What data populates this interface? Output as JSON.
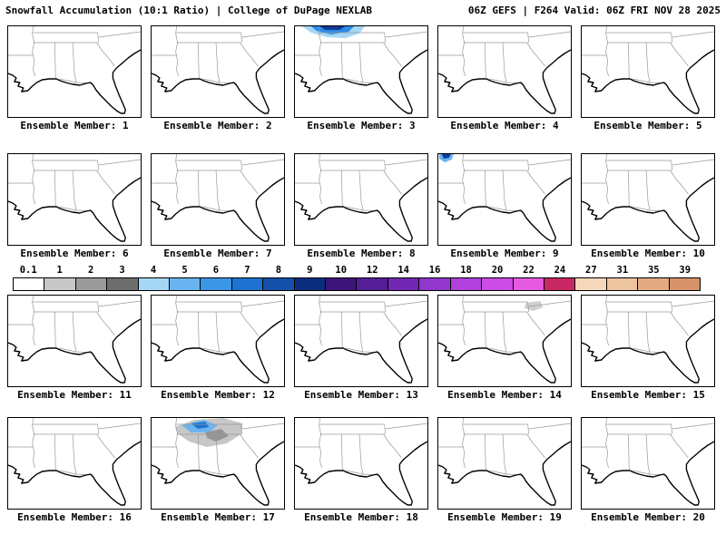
{
  "header": {
    "left": "Snowfall Accumulation (10:1 Ratio) | College of DuPage NEXLAB",
    "right": "06Z GEFS | F264 Valid: 06Z FRI NOV 28 2025"
  },
  "panels": [
    {
      "label": "Ensemble Member: 1",
      "overlay": "none"
    },
    {
      "label": "Ensemble Member: 2",
      "overlay": "none"
    },
    {
      "label": "Ensemble Member: 3",
      "overlay": "snow-north-band"
    },
    {
      "label": "Ensemble Member: 4",
      "overlay": "none"
    },
    {
      "label": "Ensemble Member: 5",
      "overlay": "none"
    },
    {
      "label": "Ensemble Member: 6",
      "overlay": "none"
    },
    {
      "label": "Ensemble Member: 7",
      "overlay": "none"
    },
    {
      "label": "Ensemble Member: 8",
      "overlay": "none"
    },
    {
      "label": "Ensemble Member: 9",
      "overlay": "snow-spot-northwest"
    },
    {
      "label": "Ensemble Member: 10",
      "overlay": "none"
    },
    {
      "label": "Ensemble Member: 11",
      "overlay": "none"
    },
    {
      "label": "Ensemble Member: 12",
      "overlay": "none"
    },
    {
      "label": "Ensemble Member: 13",
      "overlay": "none"
    },
    {
      "label": "Ensemble Member: 14",
      "overlay": "snow-smudge-northeast"
    },
    {
      "label": "Ensemble Member: 15",
      "overlay": "none"
    },
    {
      "label": "Ensemble Member: 16",
      "overlay": "none"
    },
    {
      "label": "Ensemble Member: 17",
      "overlay": "snow-patch-north"
    },
    {
      "label": "Ensemble Member: 18",
      "overlay": "none"
    },
    {
      "label": "Ensemble Member: 19",
      "overlay": "none"
    },
    {
      "label": "Ensemble Member: 20",
      "overlay": "none"
    }
  ],
  "colorbar": {
    "title": "snowfall-inches-scale",
    "labels": [
      "0.1",
      "1",
      "2",
      "3",
      "4",
      "5",
      "6",
      "7",
      "8",
      "9",
      "10",
      "12",
      "14",
      "16",
      "18",
      "20",
      "22",
      "24",
      "27",
      "31",
      "35",
      "39"
    ],
    "colors": [
      "#ffffff",
      "#c8c8c8",
      "#9b9b9b",
      "#6e6e6e",
      "#a5d7f5",
      "#69b4f0",
      "#3c96e6",
      "#1e73d2",
      "#1450aa",
      "#0a2d7d",
      "#3c1478",
      "#551e96",
      "#7328b4",
      "#9137cd",
      "#b041dc",
      "#cd4be6",
      "#e65ae0",
      "#c82864",
      "#f5d7b9",
      "#edc3a0",
      "#e3ab82",
      "#d79269"
    ]
  },
  "map": {
    "region": "southeast-us",
    "coast_color": "#000000",
    "state_line_color": "#9a9a9a",
    "land_color": "#ffffff"
  }
}
